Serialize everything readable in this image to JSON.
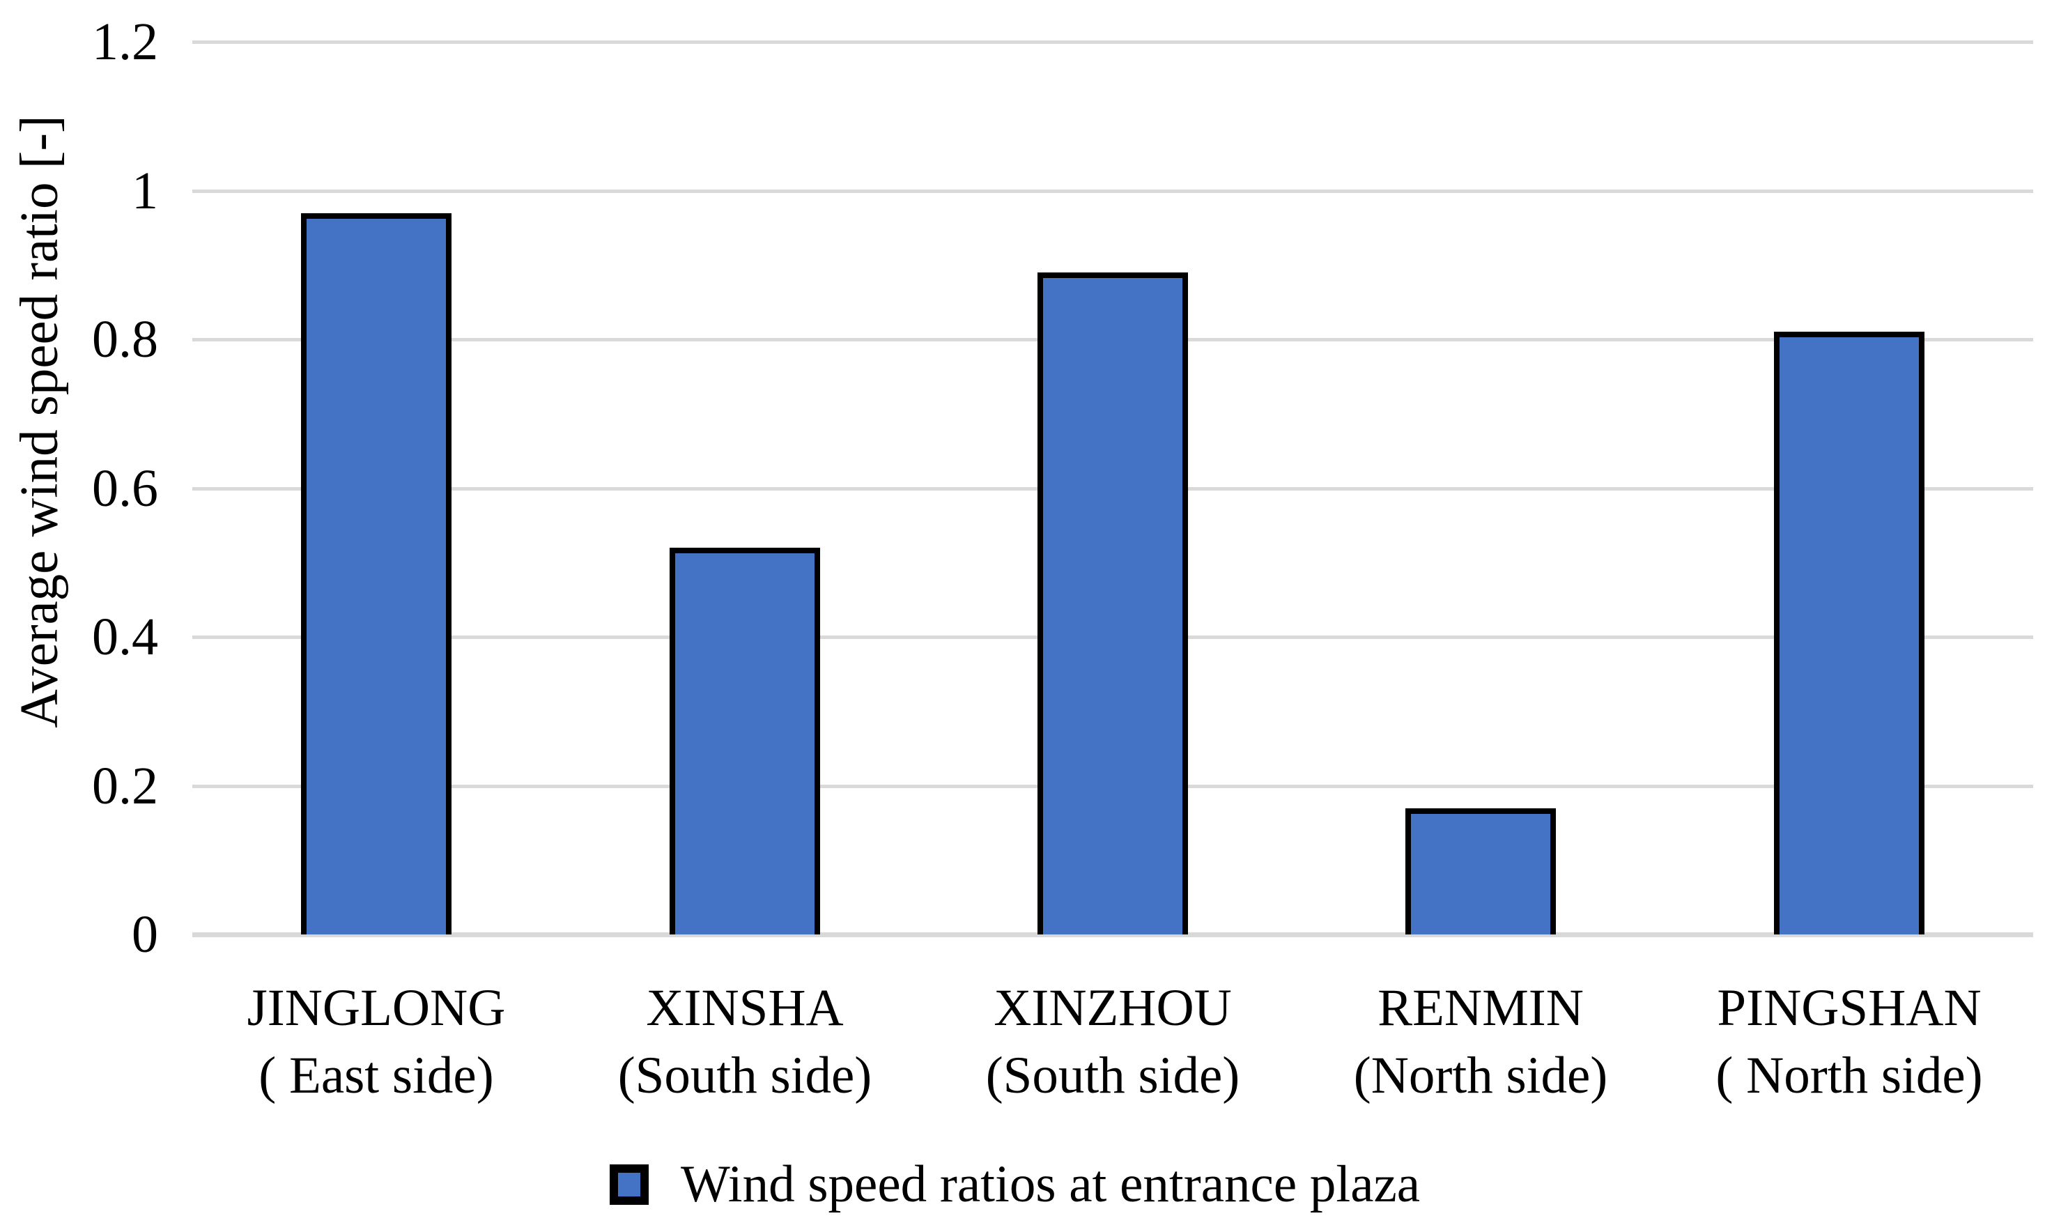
{
  "figure": {
    "background": "#FFFFFF"
  },
  "chart_data": {
    "type": "bar",
    "title": "",
    "xlabel": "",
    "ylabel": "Average wind speed ratio [-]",
    "ylim": [
      0,
      1.2
    ],
    "ytick_step": 0.2,
    "yticks": [
      {
        "value": 0,
        "label": "0"
      },
      {
        "value": 0.2,
        "label": "0.2"
      },
      {
        "value": 0.4,
        "label": "0.4"
      },
      {
        "value": 0.6,
        "label": "0.6"
      },
      {
        "value": 0.8,
        "label": "0.8"
      },
      {
        "value": 1,
        "label": "1"
      },
      {
        "value": 1.2,
        "label": "1.2"
      }
    ],
    "grid": "horizontal",
    "categories": [
      {
        "lines": [
          "JINGLONG",
          "( East side)"
        ]
      },
      {
        "lines": [
          "XINSHA",
          "(South side)"
        ]
      },
      {
        "lines": [
          "XINZHOU",
          "(South side)"
        ]
      },
      {
        "lines": [
          "RENMIN",
          "(North side)"
        ]
      },
      {
        "lines": [
          "PINGSHAN",
          "( North side)"
        ]
      }
    ],
    "series": [
      {
        "name": "Wind speed ratios at entrance plaza",
        "values": [
          0.97,
          0.52,
          0.89,
          0.17,
          0.81
        ]
      }
    ],
    "legend": {
      "label": "Wind speed ratios at entrance plaza",
      "position": "bottom-center"
    }
  },
  "style": {
    "bar_fill": "#4472C4",
    "bar_border": "#000000",
    "gridline_color": "#D9D9D9",
    "axis_line_color": "#D9D9D9",
    "text_color": "#000000",
    "background": "#FFFFFF"
  }
}
